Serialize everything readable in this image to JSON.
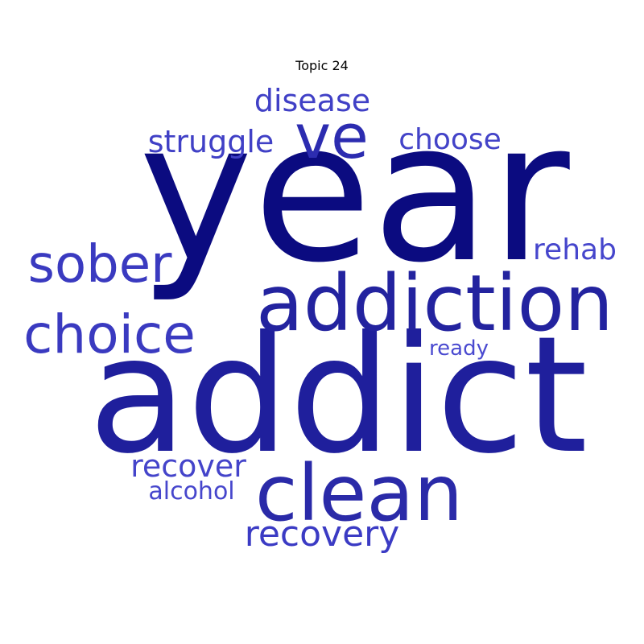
{
  "title": "Topic 24",
  "words": [
    {
      "text": "year",
      "color": "#0b0b80"
    },
    {
      "text": "addict",
      "color": "#1f1f9c"
    },
    {
      "text": "addiction",
      "color": "#23239f"
    },
    {
      "text": "clean",
      "color": "#2a2aa8"
    },
    {
      "text": "ve",
      "color": "#2c2cb0"
    },
    {
      "text": "sober",
      "color": "#3a3ac0"
    },
    {
      "text": "choice",
      "color": "#3a3ac0"
    },
    {
      "text": "recovery",
      "color": "#3b3bc4"
    },
    {
      "text": "disease",
      "color": "#4040c6"
    },
    {
      "text": "struggle",
      "color": "#4040c6"
    },
    {
      "text": "choose",
      "color": "#4343c8"
    },
    {
      "text": "rehab",
      "color": "#4646cc"
    },
    {
      "text": "recover",
      "color": "#4444ca"
    },
    {
      "text": "alcohol",
      "color": "#4646cc"
    },
    {
      "text": "ready",
      "color": "#4a4ad0"
    }
  ]
}
